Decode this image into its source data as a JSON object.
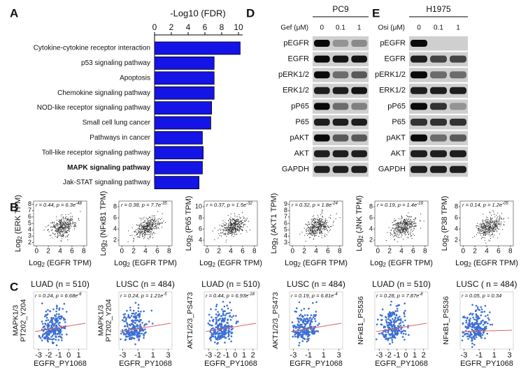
{
  "chart_data": {
    "type": "bar",
    "panel_label": "A",
    "title": "-Log10 (FDR)",
    "categories": [
      "Cytokine-cytokine receptor interaction",
      "p53 signaling pathway",
      "Apoptosis",
      "Chemokine signaling pathway",
      "NOD-like receptor signaling pathway",
      "Small cell lung cancer",
      "Pathways in cancer",
      "Toll-like receptor signaling pathway",
      "MAPK signaling pathway",
      "Jak-STAT signaling pathway"
    ],
    "values": [
      10.2,
      7.1,
      7.1,
      7.1,
      6.8,
      6.7,
      5.7,
      5.8,
      5.7,
      5.3
    ],
    "color": "#1414e6",
    "xlim": [
      0,
      10.5
    ],
    "xticks": [
      0,
      2,
      4,
      6,
      8,
      10
    ],
    "bold_index": 8
  },
  "blots": [
    {
      "panel_label": "D",
      "cell_line": "PC9",
      "treatment": "Gef (μM)",
      "doses": [
        "0",
        "0.1",
        "1"
      ],
      "rows": [
        "pEGFR",
        "EGFR",
        "pERK1/2",
        "ERK1/2",
        "pP65",
        "P65",
        "pAKT",
        "AKT",
        "GAPDH"
      ]
    },
    {
      "panel_label": "E",
      "cell_line": "H1975",
      "treatment": "Osi (μM)",
      "doses": [
        "0",
        "0.1",
        "1"
      ],
      "rows": [
        "pEGFR",
        "EGFR",
        "pERK1/2",
        "ERK1/2",
        "pP65",
        "P65",
        "pAKT",
        "AKT",
        "GAPDH"
      ]
    }
  ],
  "panel_b": {
    "panel_label": "B",
    "log": "Log",
    "log_base": "2",
    "x_label": " (EGFR TPM)",
    "xlim": [
      -0.5,
      8.5
    ],
    "xticks": [
      0,
      2,
      4,
      6,
      8
    ],
    "plots": [
      {
        "y_label": " (ERK TPM)",
        "stats": "r = 0.44, p = 6.3e",
        "exp": "-48",
        "ylim": [
          1.5,
          8.5
        ],
        "yticks": [
          2,
          3,
          4,
          5,
          6,
          7,
          8
        ]
      },
      {
        "y_label": " (NFκB1 TPM)",
        "stats": "r = 0.38, p = 7.7e",
        "exp": "-35",
        "ylim": [
          1,
          9
        ],
        "yticks": [
          2,
          4,
          6,
          8
        ]
      },
      {
        "y_label": " (P65 TPM)",
        "stats": "r = 0.37, p = 1.5e",
        "exp": "-32",
        "ylim": [
          3,
          11
        ],
        "yticks": [
          4,
          6,
          8,
          10
        ]
      },
      {
        "y_label": " (AKT1 TPM)",
        "stats": "r = 0.32, p = 1.8e",
        "exp": "-24",
        "ylim": [
          2.5,
          9.5
        ],
        "yticks": [
          3,
          4,
          5,
          6,
          7,
          8,
          9
        ]
      },
      {
        "y_label": " (JNK TPM)",
        "stats": "r = 0.19, p = 1.4e",
        "exp": "-19",
        "ylim": [
          1,
          9
        ],
        "yticks": [
          2,
          4,
          6,
          8
        ]
      },
      {
        "y_label": " (P38 TPM)",
        "stats": "r = 0.14, p = 1.2e",
        "exp": "-05",
        "ylim": [
          1,
          9
        ],
        "yticks": [
          2,
          4,
          6,
          8
        ]
      }
    ]
  },
  "panel_c": {
    "panel_label": "C",
    "x_label": "EGFR_PY1068",
    "plots": [
      {
        "title": "LUAD (n = 510)",
        "stats": "r = 0.24, p = 6.68e",
        "exp": "-6",
        "y_label": [
          "MAPK1/3",
          "PT202_Y204"
        ],
        "xlim": [
          -3.5,
          1.8
        ],
        "xticks": [
          -3,
          -2,
          -1,
          0,
          1
        ]
      },
      {
        "title": "LUSC (n = 484)",
        "stats": "r = 0.24, p = 1.21e",
        "exp": "-5",
        "y_label": [
          "MAPK1/3",
          "PT202_Y204"
        ],
        "xlim": [
          -3.5,
          3.5
        ],
        "xticks": [
          -3,
          -1,
          1,
          3
        ]
      },
      {
        "title": "LUAD (n = 510)",
        "stats": "r = 0.44, p = 6.93e",
        "exp": "-18",
        "y_label": [
          "AKT1/2/3_PS473"
        ],
        "xlim": [
          -3.5,
          2.5
        ],
        "xticks": [
          -3,
          -2,
          -1,
          0,
          1,
          2
        ]
      },
      {
        "title": "LUSC (n = 484)",
        "stats": "r = 0.19, p = 6.81e",
        "exp": "-4",
        "y_label": [
          "AKT1/2/3_PS473"
        ],
        "xlim": [
          -3.5,
          3.5
        ],
        "xticks": [
          -3,
          -1,
          1,
          3
        ]
      },
      {
        "title": "LUAD (n = 510)",
        "stats": "r = 0.28, p = 7.87e",
        "exp": "-8",
        "y_label": [
          "NFκB1_PS536"
        ],
        "xlim": [
          -3.5,
          2.5
        ],
        "xticks": [
          -3,
          -2,
          -1,
          0,
          1,
          2
        ]
      },
      {
        "title": "LUSC ( n = 484)",
        "stats": "r = 0.05, p = 0.34",
        "y_label": [
          "NFκB1_PS536"
        ],
        "xlim": [
          -3.5,
          3.5
        ],
        "xticks": [
          -3,
          -1,
          1,
          3
        ]
      }
    ]
  }
}
